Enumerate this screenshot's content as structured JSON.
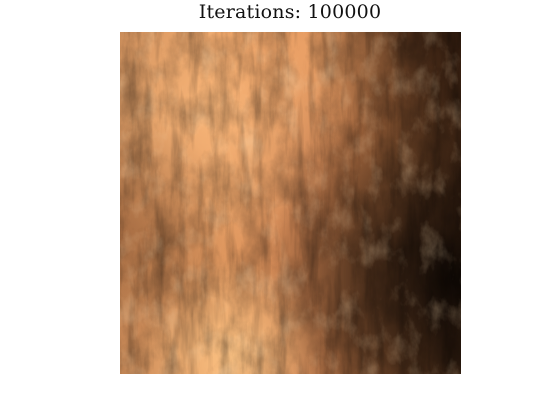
{
  "figure": {
    "title": "Iterations: 100000"
  },
  "image": {
    "kind": "terrain-heightmap",
    "colormap": "copper",
    "colors": {
      "highlight": "#ffc680",
      "light": "#f0a467",
      "mid": "#c88050",
      "shadow": "#6a4128",
      "deep_shadow": "#140c08"
    }
  }
}
